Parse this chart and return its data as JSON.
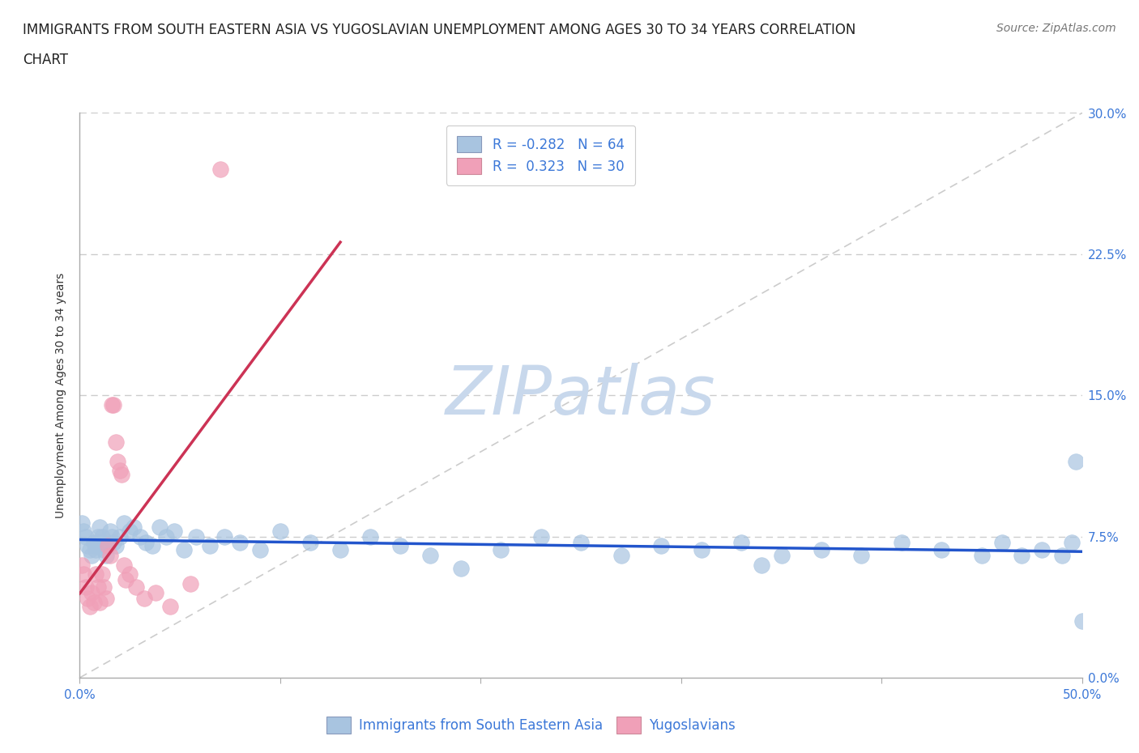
{
  "title_line1": "IMMIGRANTS FROM SOUTH EASTERN ASIA VS YUGOSLAVIAN UNEMPLOYMENT AMONG AGES 30 TO 34 YEARS CORRELATION",
  "title_line2": "CHART",
  "source": "Source: ZipAtlas.com",
  "ylabel": "Unemployment Among Ages 30 to 34 years",
  "watermark": "ZIPatlas",
  "legend_entries": [
    {
      "label": "Immigrants from South Eastern Asia",
      "color": "#aec6e8",
      "R": "-0.282",
      "N": "64"
    },
    {
      "label": "Yugoslavians",
      "color": "#f4a7b9",
      "R": "0.323",
      "N": "30"
    }
  ],
  "blue_scatter_x": [
    0.001,
    0.002,
    0.003,
    0.004,
    0.005,
    0.006,
    0.007,
    0.008,
    0.008,
    0.009,
    0.01,
    0.01,
    0.011,
    0.012,
    0.013,
    0.014,
    0.015,
    0.016,
    0.017,
    0.018,
    0.02,
    0.022,
    0.025,
    0.027,
    0.03,
    0.033,
    0.036,
    0.04,
    0.043,
    0.047,
    0.052,
    0.058,
    0.065,
    0.072,
    0.08,
    0.09,
    0.1,
    0.115,
    0.13,
    0.145,
    0.16,
    0.175,
    0.19,
    0.21,
    0.23,
    0.25,
    0.27,
    0.29,
    0.31,
    0.33,
    0.35,
    0.37,
    0.39,
    0.41,
    0.43,
    0.45,
    0.46,
    0.47,
    0.48,
    0.49,
    0.495,
    0.497,
    0.34,
    0.5
  ],
  "blue_scatter_y": [
    0.082,
    0.078,
    0.075,
    0.07,
    0.068,
    0.065,
    0.072,
    0.07,
    0.068,
    0.075,
    0.08,
    0.072,
    0.075,
    0.068,
    0.065,
    0.07,
    0.078,
    0.075,
    0.072,
    0.07,
    0.075,
    0.082,
    0.078,
    0.08,
    0.075,
    0.072,
    0.07,
    0.08,
    0.075,
    0.078,
    0.068,
    0.075,
    0.07,
    0.075,
    0.072,
    0.068,
    0.078,
    0.072,
    0.068,
    0.075,
    0.07,
    0.065,
    0.058,
    0.068,
    0.075,
    0.072,
    0.065,
    0.07,
    0.068,
    0.072,
    0.065,
    0.068,
    0.065,
    0.072,
    0.068,
    0.065,
    0.072,
    0.065,
    0.068,
    0.065,
    0.072,
    0.115,
    0.06,
    0.03
  ],
  "pink_scatter_x": [
    0.001,
    0.002,
    0.003,
    0.004,
    0.005,
    0.006,
    0.007,
    0.008,
    0.009,
    0.01,
    0.011,
    0.012,
    0.013,
    0.014,
    0.015,
    0.016,
    0.017,
    0.018,
    0.019,
    0.02,
    0.021,
    0.022,
    0.023,
    0.025,
    0.028,
    0.032,
    0.038,
    0.045,
    0.055,
    0.07
  ],
  "pink_scatter_y": [
    0.06,
    0.055,
    0.048,
    0.042,
    0.038,
    0.045,
    0.04,
    0.055,
    0.048,
    0.04,
    0.055,
    0.048,
    0.042,
    0.07,
    0.065,
    0.145,
    0.145,
    0.125,
    0.115,
    0.11,
    0.108,
    0.06,
    0.052,
    0.055,
    0.048,
    0.042,
    0.045,
    0.038,
    0.05,
    0.27
  ],
  "xlim": [
    0,
    0.5
  ],
  "ylim": [
    0,
    0.3
  ],
  "xtick_pos": [
    0.0,
    0.1,
    0.2,
    0.3,
    0.4,
    0.5
  ],
  "ytick_pos": [
    0.0,
    0.075,
    0.15,
    0.225,
    0.3
  ],
  "ytick_labels_right": [
    "0.0%",
    "7.5%",
    "15.0%",
    "22.5%",
    "30.0%"
  ],
  "xtick_labels": [
    "0.0%",
    "",
    "",
    "",
    "",
    "50.0%"
  ],
  "blue_line_color": "#2255cc",
  "pink_line_color": "#cc3355",
  "dashed_line_color": "#cccccc",
  "background_color": "#ffffff",
  "scatter_blue_color": "#a8c4e0",
  "scatter_pink_color": "#f0a0b8",
  "scatter_edge_blue": "#a8c4e0",
  "scatter_edge_pink": "#f0a0b8",
  "title_fontsize": 12,
  "axis_label_fontsize": 10,
  "tick_fontsize": 11,
  "legend_fontsize": 12,
  "watermark_fontsize": 60,
  "watermark_color": "#c8d8ec",
  "source_fontsize": 10
}
